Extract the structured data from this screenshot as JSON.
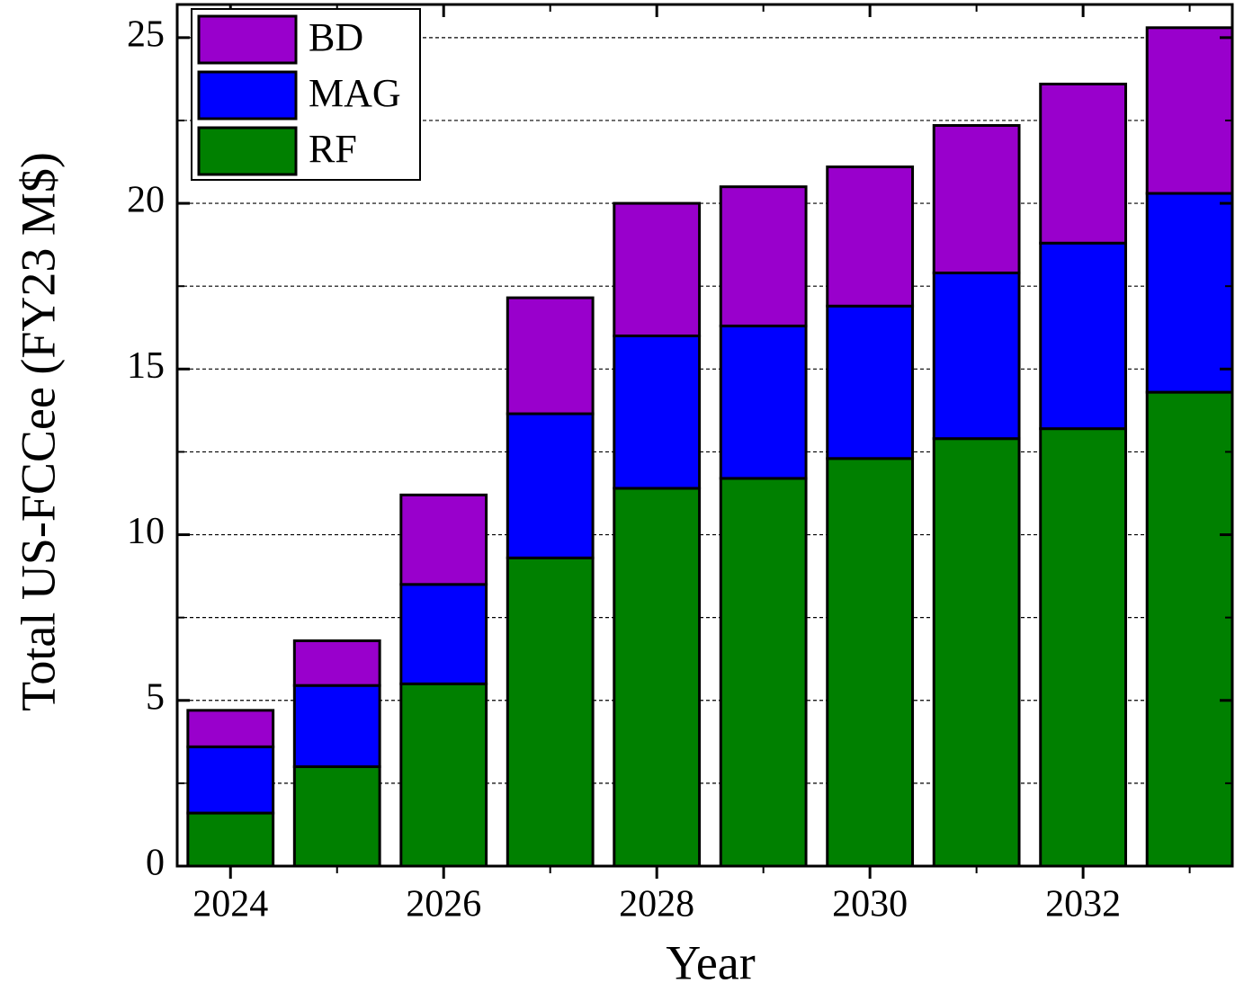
{
  "chart_data": {
    "type": "stacked_bar",
    "x_label": "Year",
    "y_label": "Total US-FCCee (FY23 M$)",
    "x": [
      2024,
      2025,
      2026,
      2027,
      2028,
      2029,
      2030,
      2031,
      2032,
      2033
    ],
    "series": [
      {
        "name": "RF",
        "color": "#008000",
        "values": [
          1.6,
          3.0,
          5.5,
          9.3,
          11.4,
          11.7,
          12.3,
          12.9,
          13.2,
          14.3
        ]
      },
      {
        "name": "MAG",
        "color": "#0000ff",
        "values": [
          2.0,
          2.45,
          3.0,
          4.35,
          4.6,
          4.6,
          4.6,
          5.0,
          5.6,
          6.0
        ]
      },
      {
        "name": "BD",
        "color": "#9900cc",
        "values": [
          1.1,
          1.35,
          2.7,
          3.5,
          4.0,
          4.2,
          4.2,
          4.45,
          4.8,
          5.0
        ]
      }
    ],
    "xlim": [
      2023.5,
      2033.4
    ],
    "xticks": [
      2024,
      2026,
      2028,
      2030,
      2032
    ],
    "xminorticks": [
      2025,
      2027,
      2029,
      2031,
      2033
    ],
    "ylim": [
      0,
      26
    ],
    "yticks": [
      0,
      5,
      10,
      15,
      20,
      25
    ],
    "yminorticks": [
      2.5,
      7.5,
      12.5,
      17.5,
      22.5
    ],
    "grid": true,
    "legend": "upper left"
  }
}
